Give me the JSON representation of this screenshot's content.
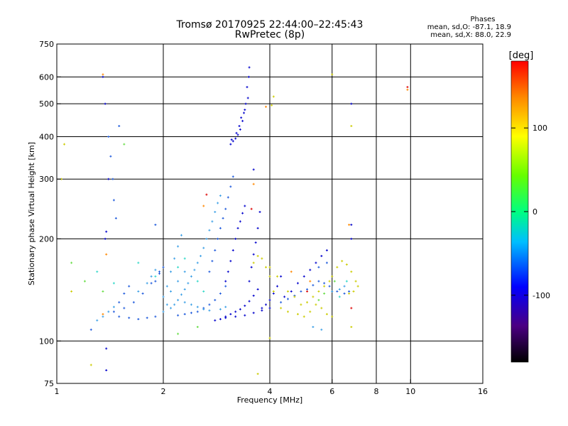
{
  "header": {
    "title": "Tromsø 20170925 22:44:00–22:45:43",
    "subtitle": "RwPretec (8p)"
  },
  "phase_stats": {
    "heading": "Phases",
    "line_o": "mean, sd,O: -87.1, 18.9",
    "line_x": "mean, sd,X:  88.0, 22.9"
  },
  "colorbar": {
    "unit_label": "[deg]",
    "ticks": [
      "100",
      "0",
      "-100"
    ],
    "range": [
      -180,
      180
    ],
    "tick_values": [
      100,
      0,
      -100
    ]
  },
  "chart_data": {
    "type": "scatter",
    "xlabel": "Frequency [MHz]",
    "ylabel": "Stationary phase Virtual Height [km]",
    "xscale": "log",
    "yscale": "log",
    "xlim": [
      1,
      16
    ],
    "ylim": [
      75,
      750
    ],
    "xticks": [
      1,
      2,
      4,
      6,
      8,
      10,
      16
    ],
    "xtick_labels": [
      "1",
      "2",
      "4",
      "6",
      "8",
      "10",
      "16"
    ],
    "yticks": [
      75,
      100,
      200,
      300,
      400,
      500,
      600,
      750
    ],
    "ytick_labels": [
      "75",
      "100",
      "200",
      "300",
      "400",
      "500",
      "600",
      "750"
    ],
    "grid": true,
    "series": [
      {
        "color": "#0000cc",
        "points": [
          [
            3.1,
            380
          ],
          [
            3.15,
            388
          ],
          [
            3.2,
            395
          ],
          [
            3.25,
            405
          ],
          [
            3.3,
            420
          ],
          [
            3.35,
            445
          ],
          [
            3.38,
            470
          ],
          [
            3.42,
            500
          ],
          [
            3.45,
            560
          ],
          [
            3.5,
            640
          ],
          [
            3.12,
            392
          ],
          [
            3.22,
            410
          ],
          [
            3.28,
            430
          ],
          [
            3.32,
            455
          ],
          [
            3.4,
            480
          ],
          [
            3.47,
            520
          ],
          [
            3.49,
            600
          ],
          [
            3.0,
            150
          ],
          [
            3.05,
            160
          ],
          [
            3.1,
            172
          ],
          [
            3.15,
            185
          ],
          [
            3.2,
            200
          ],
          [
            3.25,
            215
          ],
          [
            3.3,
            225
          ],
          [
            3.35,
            238
          ],
          [
            3.4,
            250
          ],
          [
            3.0,
            118
          ],
          [
            3.1,
            120
          ],
          [
            3.2,
            122
          ],
          [
            3.3,
            124
          ],
          [
            3.4,
            127
          ],
          [
            3.5,
            131
          ],
          [
            3.6,
            136
          ],
          [
            3.7,
            142
          ],
          [
            3.5,
            150
          ],
          [
            3.55,
            165
          ],
          [
            3.6,
            180
          ],
          [
            3.65,
            195
          ],
          [
            3.7,
            215
          ],
          [
            3.75,
            240
          ],
          [
            3.8,
            125
          ],
          [
            3.9,
            128
          ],
          [
            4.0,
            132
          ],
          [
            4.1,
            138
          ],
          [
            4.2,
            145
          ],
          [
            4.3,
            155
          ],
          [
            2.8,
            115
          ],
          [
            2.9,
            116
          ],
          [
            3.0,
            117
          ],
          [
            3.2,
            118
          ],
          [
            3.4,
            119
          ],
          [
            3.6,
            121
          ],
          [
            3.8,
            123
          ],
          [
            4.0,
            125
          ],
          [
            4.4,
            135
          ],
          [
            4.6,
            140
          ],
          [
            4.8,
            148
          ],
          [
            5.0,
            155
          ],
          [
            5.2,
            162
          ],
          [
            5.4,
            170
          ],
          [
            5.6,
            178
          ],
          [
            5.8,
            185
          ],
          [
            6.8,
            220
          ],
          [
            6.8,
            200
          ],
          [
            6.8,
            500
          ],
          [
            1.35,
            600
          ],
          [
            1.37,
            500
          ],
          [
            1.4,
            300
          ],
          [
            1.38,
            210
          ],
          [
            1.37,
            200
          ],
          [
            3.6,
            320
          ],
          [
            1.38,
            95
          ],
          [
            1.38,
            82
          ]
        ]
      },
      {
        "color": "#1e5adc",
        "points": [
          [
            2.7,
            160
          ],
          [
            2.75,
            172
          ],
          [
            2.8,
            185
          ],
          [
            2.85,
            200
          ],
          [
            2.9,
            215
          ],
          [
            2.95,
            230
          ],
          [
            3.0,
            245
          ],
          [
            3.05,
            265
          ],
          [
            3.1,
            285
          ],
          [
            3.15,
            305
          ],
          [
            2.6,
            125
          ],
          [
            2.7,
            128
          ],
          [
            2.8,
            132
          ],
          [
            2.9,
            138
          ],
          [
            3.0,
            145
          ],
          [
            2.5,
            122
          ],
          [
            2.4,
            121
          ],
          [
            2.3,
            120
          ],
          [
            2.2,
            119
          ],
          [
            1.5,
            118
          ],
          [
            1.6,
            117
          ],
          [
            1.7,
            116
          ],
          [
            1.8,
            117
          ],
          [
            1.9,
            118
          ],
          [
            1.55,
            125
          ],
          [
            1.65,
            130
          ],
          [
            1.75,
            138
          ],
          [
            1.85,
            148
          ],
          [
            1.95,
            160
          ],
          [
            1.45,
            122
          ],
          [
            1.5,
            130
          ],
          [
            1.55,
            138
          ],
          [
            1.6,
            145
          ],
          [
            1.9,
            150
          ],
          [
            1.95,
            158
          ],
          [
            2.0,
            165
          ],
          [
            4.3,
            130
          ],
          [
            4.5,
            133
          ],
          [
            4.7,
            136
          ],
          [
            4.9,
            140
          ],
          [
            5.1,
            142
          ],
          [
            5.3,
            146
          ],
          [
            5.5,
            150
          ],
          [
            5.7,
            148
          ],
          [
            5.9,
            145
          ],
          [
            6.2,
            140
          ],
          [
            6.5,
            138
          ],
          [
            6.7,
            140
          ],
          [
            1.4,
            400
          ],
          [
            1.42,
            350
          ],
          [
            1.44,
            300
          ],
          [
            1.45,
            260
          ],
          [
            1.47,
            230
          ],
          [
            1.5,
            430
          ],
          [
            1.9,
            220
          ],
          [
            1.25,
            108
          ],
          [
            5.5,
            165
          ],
          [
            5.8,
            170
          ]
        ]
      },
      {
        "color": "#3ca0e6",
        "points": [
          [
            2.1,
            125
          ],
          [
            2.15,
            128
          ],
          [
            2.2,
            132
          ],
          [
            2.25,
            137
          ],
          [
            2.3,
            142
          ],
          [
            2.35,
            148
          ],
          [
            2.4,
            155
          ],
          [
            2.45,
            162
          ],
          [
            2.5,
            170
          ],
          [
            2.55,
            178
          ],
          [
            2.6,
            188
          ],
          [
            2.65,
            200
          ],
          [
            2.7,
            212
          ],
          [
            2.75,
            225
          ],
          [
            2.8,
            240
          ],
          [
            2.85,
            255
          ],
          [
            2.9,
            268
          ],
          [
            2.0,
            122
          ],
          [
            2.05,
            128
          ],
          [
            2.0,
            135
          ],
          [
            2.05,
            145
          ],
          [
            2.1,
            160
          ],
          [
            2.15,
            175
          ],
          [
            2.2,
            190
          ],
          [
            2.25,
            205
          ],
          [
            1.7,
            140
          ],
          [
            1.8,
            148
          ],
          [
            1.85,
            155
          ],
          [
            1.9,
            162
          ],
          [
            2.1,
            140
          ],
          [
            2.2,
            150
          ],
          [
            2.3,
            160
          ],
          [
            2.3,
            130
          ],
          [
            2.4,
            128
          ],
          [
            2.5,
            126
          ],
          [
            2.6,
            124
          ],
          [
            2.7,
            123
          ],
          [
            2.9,
            124
          ],
          [
            3.0,
            126
          ],
          [
            1.3,
            115
          ],
          [
            1.35,
            118
          ],
          [
            1.4,
            122
          ],
          [
            1.45,
            126
          ],
          [
            6.0,
            140
          ],
          [
            6.3,
            142
          ],
          [
            6.5,
            145
          ],
          [
            5.3,
            110
          ],
          [
            5.6,
            108
          ]
        ]
      },
      {
        "color": "#30d8c8",
        "points": [
          [
            1.3,
            160
          ],
          [
            1.45,
            148
          ],
          [
            2.3,
            175
          ],
          [
            2.5,
            150
          ],
          [
            2.2,
            165
          ],
          [
            1.9,
            155
          ],
          [
            2.6,
            140
          ],
          [
            6.6,
            150
          ],
          [
            6.3,
            135
          ],
          [
            1.7,
            170
          ]
        ]
      },
      {
        "color": "#66dd44",
        "points": [
          [
            1.55,
            380
          ],
          [
            1.1,
            170
          ],
          [
            1.2,
            150
          ],
          [
            2.2,
            105
          ],
          [
            2.5,
            110
          ],
          [
            5.5,
            132
          ],
          [
            5.7,
            138
          ],
          [
            6.1,
            150
          ],
          [
            1.35,
            140
          ]
        ]
      },
      {
        "color": "#cccc00",
        "points": [
          [
            4.0,
            165
          ],
          [
            4.2,
            155
          ],
          [
            4.5,
            140
          ],
          [
            4.7,
            135
          ],
          [
            4.9,
            128
          ],
          [
            5.1,
            130
          ],
          [
            5.3,
            135
          ],
          [
            5.5,
            140
          ],
          [
            5.7,
            145
          ],
          [
            5.9,
            150
          ],
          [
            6.0,
            155
          ],
          [
            6.2,
            165
          ],
          [
            6.4,
            172
          ],
          [
            6.6,
            168
          ],
          [
            6.8,
            160
          ],
          [
            7.0,
            150
          ],
          [
            7.1,
            145
          ],
          [
            6.9,
            140
          ],
          [
            6.7,
            138
          ],
          [
            3.6,
            170
          ],
          [
            3.7,
            178
          ],
          [
            3.8,
            175
          ],
          [
            3.9,
            165
          ],
          [
            4.0,
            155
          ],
          [
            4.1,
            140
          ],
          [
            4.3,
            125
          ],
          [
            4.5,
            122
          ],
          [
            4.8,
            120
          ],
          [
            5.0,
            118
          ],
          [
            5.2,
            122
          ],
          [
            5.4,
            128
          ],
          [
            5.6,
            125
          ],
          [
            5.8,
            120
          ],
          [
            6.0,
            118
          ],
          [
            1.03,
            300
          ],
          [
            1.05,
            380
          ],
          [
            1.1,
            140
          ],
          [
            1.25,
            85
          ],
          [
            3.7,
            80
          ],
          [
            4.05,
            495
          ],
          [
            4.1,
            525
          ],
          [
            6.0,
            610
          ],
          [
            6.8,
            430
          ],
          [
            6.8,
            110
          ],
          [
            4.0,
            102
          ]
        ]
      },
      {
        "color": "#ff8800",
        "points": [
          [
            1.35,
            610
          ],
          [
            2.6,
            250
          ],
          [
            3.9,
            490
          ],
          [
            3.6,
            290
          ],
          [
            4.6,
            160
          ],
          [
            5.2,
            150
          ],
          [
            6.7,
            220
          ],
          [
            9.8,
            550
          ],
          [
            1.38,
            180
          ],
          [
            1.35,
            120
          ]
        ]
      },
      {
        "color": "#dd0000",
        "points": [
          [
            2.65,
            270
          ],
          [
            3.55,
            245
          ],
          [
            5.1,
            140
          ],
          [
            6.8,
            125
          ],
          [
            9.8,
            560
          ]
        ]
      }
    ]
  }
}
